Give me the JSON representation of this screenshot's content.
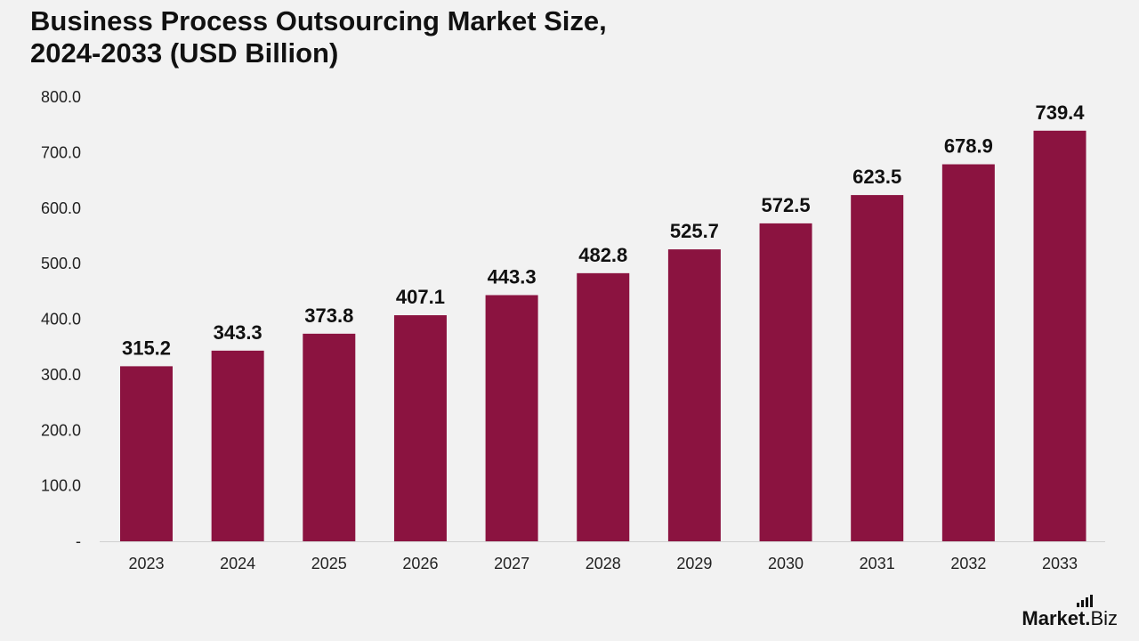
{
  "title": {
    "line1": "Business Process Outsourcing Market Size,",
    "line2": "2024-2033 (USD Billion)"
  },
  "logo": {
    "brand": "Market.",
    "suffix": "Biz"
  },
  "colors": {
    "bar": "#8b1340",
    "background": "#f2f2f2",
    "axis": "#d0d0d0"
  },
  "chart_data": {
    "type": "bar",
    "categories": [
      "2023",
      "2024",
      "2025",
      "2026",
      "2027",
      "2028",
      "2029",
      "2030",
      "2031",
      "2032",
      "2033"
    ],
    "values": [
      315.2,
      343.3,
      373.8,
      407.1,
      443.3,
      482.8,
      525.7,
      572.5,
      623.5,
      678.9,
      739.4
    ],
    "value_labels": [
      "315.2",
      "343.3",
      "373.8",
      "407.1",
      "443.3",
      "482.8",
      "525.7",
      "572.5",
      "623.5",
      "678.9",
      "739.4"
    ],
    "ylim": [
      0,
      800
    ],
    "yticks": [
      0,
      100,
      200,
      300,
      400,
      500,
      600,
      700,
      800
    ],
    "ytick_labels": [
      "-",
      "100.0",
      "200.0",
      "300.0",
      "400.0",
      "500.0",
      "600.0",
      "700.0",
      "800.0"
    ],
    "xlabel": "",
    "ylabel": "",
    "grid": false,
    "legend": "none"
  }
}
